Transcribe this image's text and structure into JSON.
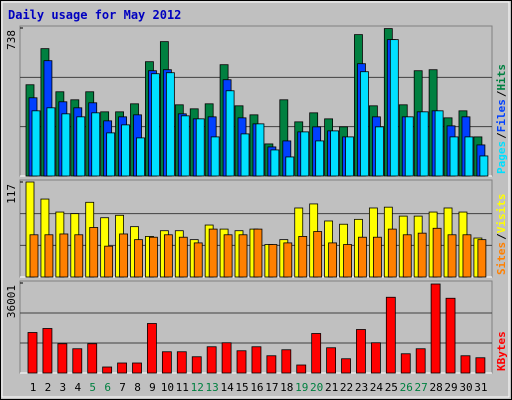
{
  "title": "Daily usage for May 2012",
  "chart_data": [
    {
      "type": "bar",
      "legend_separator": "/",
      "ylim": [
        0,
        738
      ],
      "yticks": [
        738
      ],
      "grid_divisions": 3,
      "series": [
        {
          "name": "Hits",
          "color": "#008040",
          "values": [
            455,
            635,
            420,
            380,
            420,
            320,
            320,
            360,
            570,
            670,
            355,
            335,
            360,
            555,
            350,
            305,
            160,
            380,
            270,
            315,
            285,
            245,
            705,
            350,
            735,
            355,
            525,
            530,
            290,
            325,
            195
          ]
        },
        {
          "name": "Files",
          "color": "#0040ff",
          "values": [
            390,
            575,
            370,
            340,
            365,
            275,
            295,
            305,
            525,
            530,
            310,
            285,
            295,
            480,
            290,
            260,
            145,
            175,
            220,
            245,
            225,
            195,
            560,
            295,
            680,
            295,
            320,
            325,
            250,
            295,
            155
          ]
        },
        {
          "name": "Pages",
          "color": "#00e0ff",
          "values": [
            325,
            340,
            310,
            295,
            315,
            215,
            255,
            190,
            510,
            515,
            300,
            285,
            195,
            425,
            210,
            260,
            130,
            95,
            220,
            175,
            225,
            195,
            520,
            245,
            680,
            295,
            320,
            325,
            195,
            195,
            100
          ]
        }
      ]
    },
    {
      "type": "bar",
      "legend_separator": "/",
      "ylim": [
        0,
        117
      ],
      "yticks": [
        117
      ],
      "grid_divisions": 3,
      "series": [
        {
          "name": "Visits",
          "color": "#ffff00",
          "values": [
            117,
            96,
            80,
            78,
            92,
            73,
            76,
            62,
            50,
            57,
            57,
            46,
            64,
            59,
            57,
            59,
            40,
            46,
            85,
            90,
            69,
            65,
            71,
            85,
            86,
            75,
            75,
            80,
            85,
            80,
            48
          ]
        },
        {
          "name": "Sites",
          "color": "#ff8000",
          "values": [
            52,
            52,
            53,
            52,
            61,
            38,
            53,
            46,
            49,
            52,
            49,
            42,
            59,
            52,
            52,
            59,
            40,
            42,
            50,
            56,
            42,
            40,
            49,
            49,
            59,
            52,
            54,
            60,
            52,
            52,
            46
          ]
        }
      ]
    },
    {
      "type": "bar",
      "ylim": [
        0,
        36001
      ],
      "yticks": [
        36001
      ],
      "grid_divisions": 3,
      "categories": [
        "1",
        "2",
        "3",
        "4",
        "5",
        "6",
        "7",
        "8",
        "9",
        "10",
        "11",
        "12",
        "13",
        "14",
        "15",
        "16",
        "17",
        "18",
        "19",
        "20",
        "21",
        "22",
        "23",
        "24",
        "25",
        "26",
        "27",
        "28",
        "29",
        "30",
        "31"
      ],
      "category_colors": [
        "#000000",
        "#000000",
        "#000000",
        "#000000",
        "#008040",
        "#008040",
        "#000000",
        "#000000",
        "#000000",
        "#000000",
        "#000000",
        "#008040",
        "#008040",
        "#000000",
        "#000000",
        "#000000",
        "#000000",
        "#000000",
        "#008040",
        "#008040",
        "#000000",
        "#000000",
        "#000000",
        "#000000",
        "#000000",
        "#008040",
        "#008040",
        "#000000",
        "#000000",
        "#000000",
        "#000000"
      ],
      "series": [
        {
          "name": "KBytes",
          "color": "#ff0000",
          "values": [
            16200,
            17800,
            11700,
            9700,
            11700,
            2400,
            4000,
            4000,
            19800,
            8500,
            8500,
            6500,
            10500,
            12100,
            8900,
            10500,
            6900,
            9300,
            3200,
            15800,
            10100,
            5700,
            17400,
            12100,
            30300,
            7700,
            9700,
            35600,
            29900,
            6900,
            6100
          ]
        }
      ]
    }
  ]
}
